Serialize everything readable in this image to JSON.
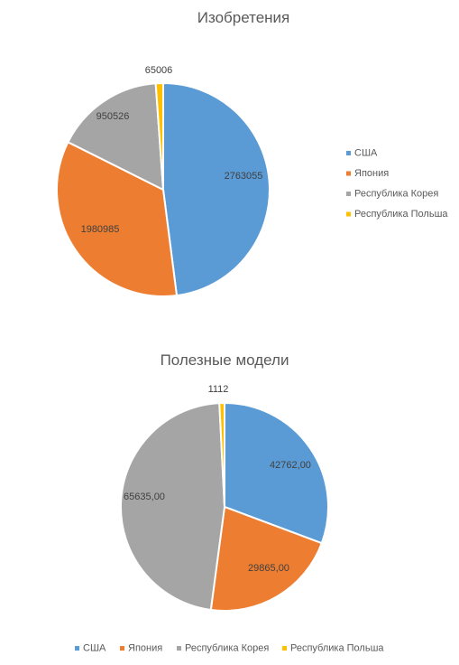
{
  "colors": {
    "usa": "#5B9BD5",
    "japan": "#ED7D31",
    "korea": "#A5A5A5",
    "poland": "#FFC000"
  },
  "chart_data": [
    {
      "type": "pie",
      "title": "Изобретения",
      "legend": "right",
      "categories": [
        "США",
        "Япония",
        "Республика Корея",
        "Республика Польша"
      ],
      "values": [
        2763055,
        1980985,
        950526,
        65006
      ],
      "data_labels": [
        "2763055",
        "1980985",
        "950526",
        "65006"
      ]
    },
    {
      "type": "pie",
      "title": "Полезные модели",
      "legend": "bottom",
      "categories": [
        "США",
        "Япония",
        "Республика Корея",
        "Республика Польша"
      ],
      "values": [
        42762,
        29865,
        65635,
        1112
      ],
      "data_labels": [
        "42762,00",
        "29865,00",
        "65635,00",
        "1112"
      ]
    }
  ]
}
